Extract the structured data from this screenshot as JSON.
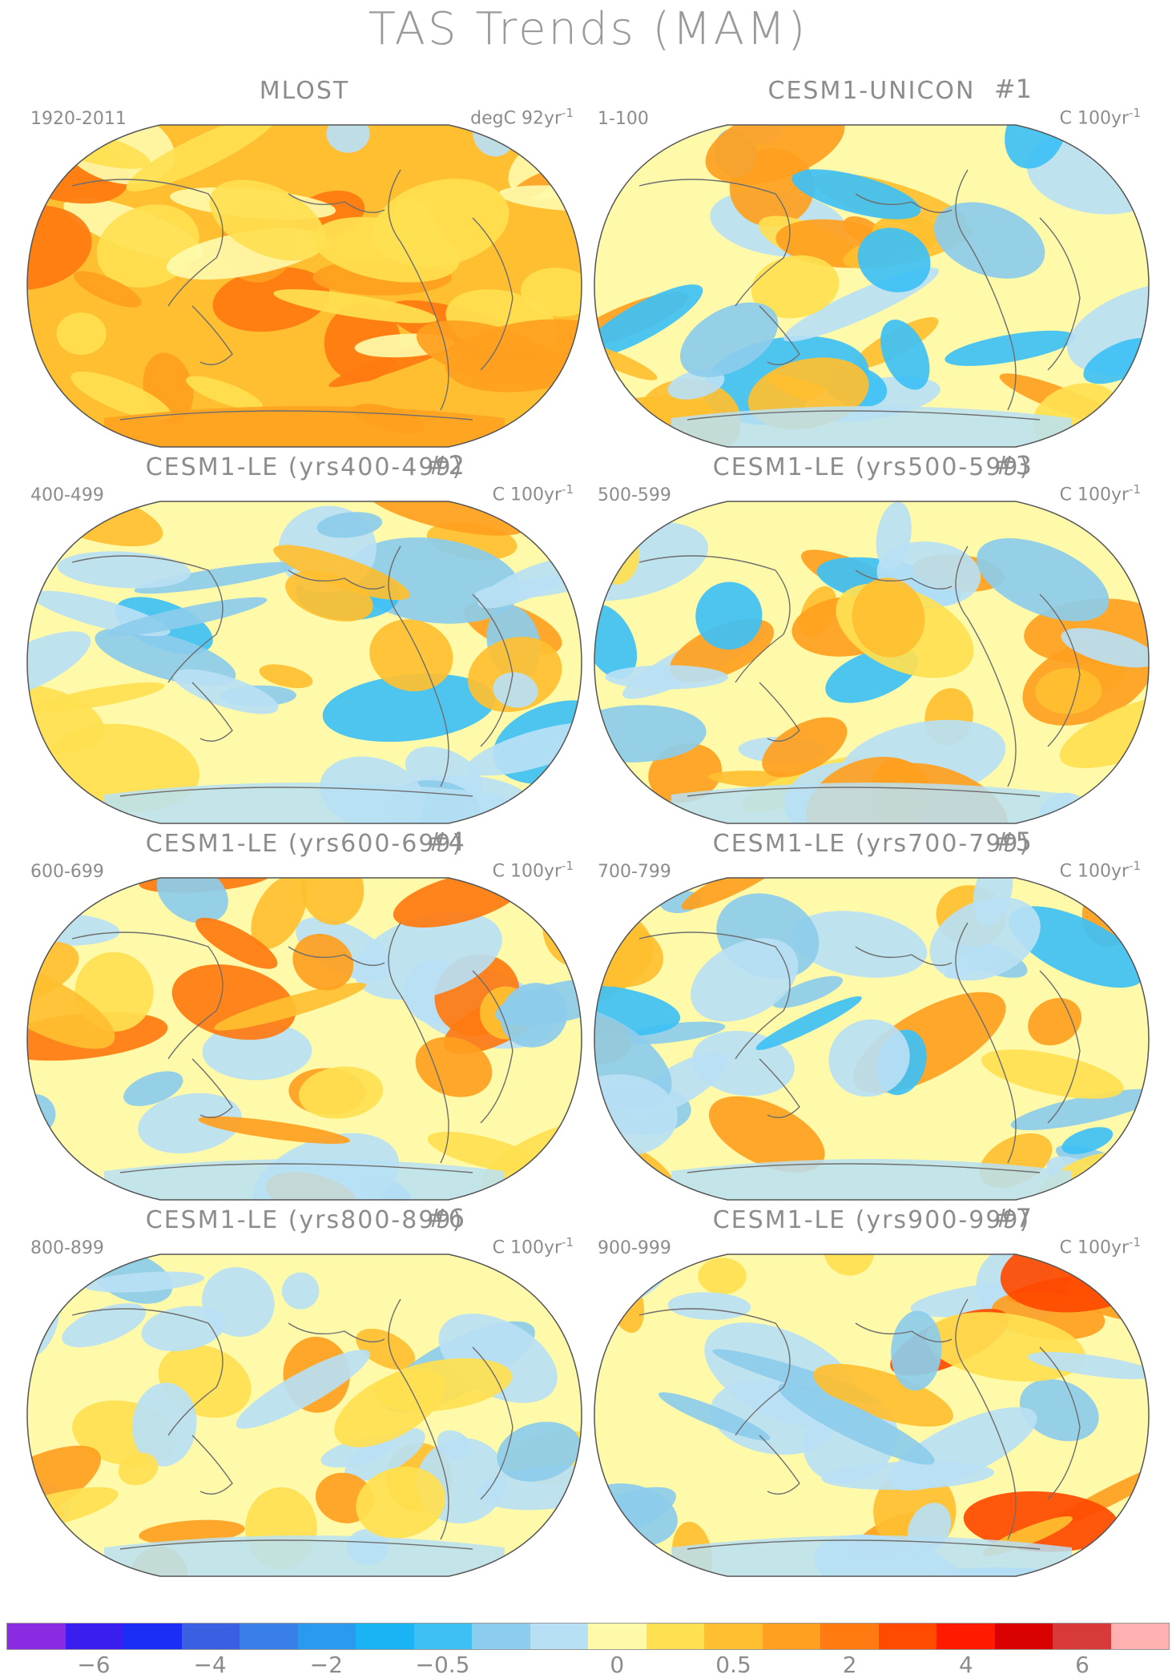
{
  "title": "TAS Trends (MAM)",
  "panels": [
    {
      "title": "MLOST",
      "tag": "",
      "period": "1920-2011",
      "units_base": "degC 92yr",
      "units_exp": "-1",
      "theme": "warm"
    },
    {
      "title": "CESM1-UNICON",
      "tag": "#1",
      "period": "1-100",
      "units_base": "C 100yr",
      "units_exp": "-1",
      "theme": "mixed1"
    },
    {
      "title": "CESM1-LE (yrs400-499)",
      "tag": "#2",
      "period": "400-499",
      "units_base": "C 100yr",
      "units_exp": "-1",
      "theme": "mixed2"
    },
    {
      "title": "CESM1-LE (yrs500-599)",
      "tag": "#3",
      "period": "500-599",
      "units_base": "C 100yr",
      "units_exp": "-1",
      "theme": "mixed3"
    },
    {
      "title": "CESM1-LE (yrs600-699)",
      "tag": "#4",
      "period": "600-699",
      "units_base": "C 100yr",
      "units_exp": "-1",
      "theme": "mixed4"
    },
    {
      "title": "CESM1-LE (yrs700-799)",
      "tag": "#5",
      "period": "700-799",
      "units_base": "C 100yr",
      "units_exp": "-1",
      "theme": "mixed5"
    },
    {
      "title": "CESM1-LE (yrs800-899)",
      "tag": "#6",
      "period": "800-899",
      "units_base": "C 100yr",
      "units_exp": "-1",
      "theme": "mixed6"
    },
    {
      "title": "CESM1-LE (yrs900-999)",
      "tag": "#7",
      "period": "900-999",
      "units_base": "C 100yr",
      "units_exp": "-1",
      "theme": "mixed7"
    }
  ],
  "colorbar": {
    "colors": [
      "#8a2be2",
      "#3a1ef0",
      "#1a2ef5",
      "#3a5fe0",
      "#3a7fe8",
      "#2a9af0",
      "#1ab4f5",
      "#3ec0f5",
      "#8cccec",
      "#b8e0f4",
      "#fffaaa",
      "#ffe050",
      "#ffbf30",
      "#ffa020",
      "#ff7a10",
      "#ff4a00",
      "#ff1a00",
      "#d80000",
      "#d83a3a",
      "#ffb0b0"
    ],
    "labels": [
      "−6",
      "−4",
      "−2",
      "−0.5",
      "0",
      "0.5",
      "2",
      "4",
      "6"
    ],
    "label_boundary_index": [
      1,
      3,
      5,
      7,
      10,
      12,
      14,
      16,
      18
    ]
  }
}
